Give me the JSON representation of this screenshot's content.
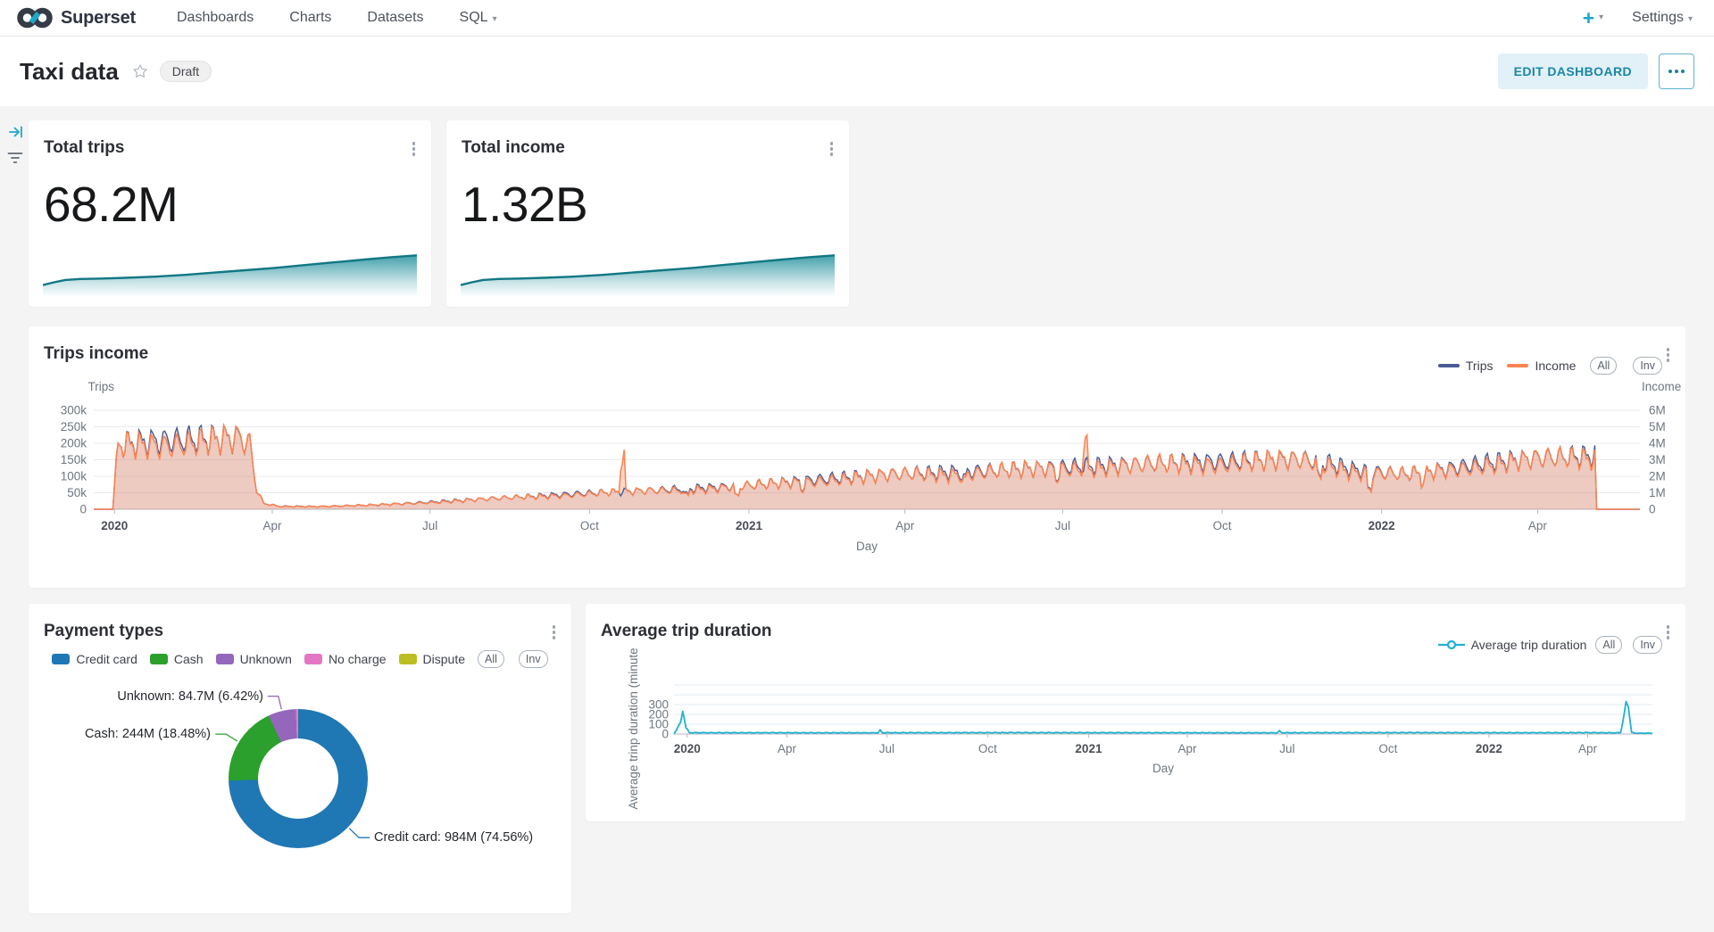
{
  "navbar": {
    "brand": "Superset",
    "items": [
      {
        "label": "Dashboards"
      },
      {
        "label": "Charts"
      },
      {
        "label": "Datasets"
      },
      {
        "label": "SQL"
      }
    ],
    "new_button": "+",
    "settings_label": "Settings"
  },
  "header": {
    "title": "Taxi data",
    "status_badge": "Draft",
    "edit_button": "EDIT DASHBOARD"
  },
  "colors": {
    "accent": "#20a7c9",
    "page_background": "#f4f4f4"
  },
  "chart_data": [
    {
      "id": "total-trips",
      "type": "big_number_trendline",
      "title": "Total trips",
      "value": "68.2M",
      "line_color": "#127784",
      "fill_top": "#2e96a3",
      "trend": [
        [
          0,
          0.2
        ],
        [
          0.03,
          0.26
        ],
        [
          0.06,
          0.31
        ],
        [
          0.1,
          0.33
        ],
        [
          0.16,
          0.34
        ],
        [
          0.22,
          0.355
        ],
        [
          0.3,
          0.38
        ],
        [
          0.38,
          0.42
        ],
        [
          0.46,
          0.47
        ],
        [
          0.54,
          0.52
        ],
        [
          0.62,
          0.57
        ],
        [
          0.7,
          0.63
        ],
        [
          0.78,
          0.69
        ],
        [
          0.86,
          0.75
        ],
        [
          0.93,
          0.8
        ],
        [
          1,
          0.84
        ]
      ]
    },
    {
      "id": "total-income",
      "type": "big_number_trendline",
      "title": "Total income",
      "value": "1.32B",
      "line_color": "#127784",
      "fill_top": "#2e96a3",
      "trend": [
        [
          0,
          0.2
        ],
        [
          0.03,
          0.26
        ],
        [
          0.06,
          0.31
        ],
        [
          0.1,
          0.33
        ],
        [
          0.16,
          0.34
        ],
        [
          0.22,
          0.355
        ],
        [
          0.3,
          0.38
        ],
        [
          0.38,
          0.42
        ],
        [
          0.46,
          0.47
        ],
        [
          0.54,
          0.52
        ],
        [
          0.62,
          0.57
        ],
        [
          0.7,
          0.63
        ],
        [
          0.78,
          0.69
        ],
        [
          0.86,
          0.75
        ],
        [
          0.93,
          0.8
        ],
        [
          1,
          0.84
        ]
      ]
    },
    {
      "id": "trips-income",
      "type": "line",
      "title": "Trips income",
      "x_axis": {
        "label": "Day",
        "ticks": [
          {
            "label": "2020",
            "day": 0,
            "bold": true
          },
          {
            "label": "Apr",
            "day": 91
          },
          {
            "label": "Jul",
            "day": 182
          },
          {
            "label": "Oct",
            "day": 274
          },
          {
            "label": "2021",
            "day": 366,
            "bold": true
          },
          {
            "label": "Apr",
            "day": 456
          },
          {
            "label": "Jul",
            "day": 547
          },
          {
            "label": "Oct",
            "day": 639
          },
          {
            "label": "2022",
            "day": 731,
            "bold": true
          },
          {
            "label": "Apr",
            "day": 821
          }
        ]
      },
      "left_axis": {
        "title": "Trips",
        "max": 300000,
        "ticks": [
          "300k",
          "250k",
          "200k",
          "150k",
          "100k",
          "50k",
          "0"
        ]
      },
      "right_axis": {
        "title": "Income",
        "max": 6000000,
        "ticks": [
          "6M",
          "5M",
          "4M",
          "3M",
          "2M",
          "1M",
          "0"
        ]
      },
      "legend": [
        {
          "label": "Trips",
          "color": "#4a5a94"
        },
        {
          "label": "Income",
          "color": "#fc8452"
        }
      ],
      "legend_buttons": [
        "All",
        "Inv"
      ],
      "day_range": [
        -12,
        880
      ],
      "series": [
        {
          "name": "Trips",
          "color": "#4a5a94",
          "keypoints": [
            [
              -12,
              0
            ],
            [
              -1,
              0
            ],
            [
              2,
              196000
            ],
            [
              10,
              200000
            ],
            [
              20,
              206000
            ],
            [
              30,
              208000
            ],
            [
              45,
              212000
            ],
            [
              60,
              214000
            ],
            [
              72,
              216000
            ],
            [
              78,
              198000
            ],
            [
              82,
              60000
            ],
            [
              86,
              18000
            ],
            [
              95,
              9000
            ],
            [
              120,
              8500
            ],
            [
              150,
              13000
            ],
            [
              180,
              21000
            ],
            [
              210,
              30000
            ],
            [
              240,
              39000
            ],
            [
              270,
              48000
            ],
            [
              300,
              55000
            ],
            [
              330,
              62000
            ],
            [
              366,
              72000
            ],
            [
              400,
              88000
            ],
            [
              430,
              100000
            ],
            [
              456,
              108000
            ],
            [
              480,
              112000
            ],
            [
              510,
              118000
            ],
            [
              540,
              126000
            ],
            [
              570,
              133000
            ],
            [
              600,
              138000
            ],
            [
              625,
              143000
            ],
            [
              650,
              147000
            ],
            [
              668,
              150000
            ],
            [
              685,
              152000
            ],
            [
              700,
              140000
            ],
            [
              715,
              120000
            ],
            [
              731,
              112000
            ],
            [
              745,
              106000
            ],
            [
              760,
              116000
            ],
            [
              775,
              128000
            ],
            [
              790,
              140000
            ],
            [
              805,
              148000
            ],
            [
              820,
              155000
            ],
            [
              835,
              158000
            ],
            [
              850,
              162000
            ],
            [
              854,
              163000
            ],
            [
              855,
              0
            ],
            [
              880,
              0
            ]
          ]
        },
        {
          "name": "Income",
          "color": "#fc8452"
        }
      ],
      "income_per_trip": 19.35,
      "income_wobble": 0.045,
      "income_spikes": [
        [
          293,
          2.8
        ],
        [
          560,
          1.55
        ]
      ],
      "dip_days": [
        [
          330,
          0.72
        ],
        [
          359,
          0.6
        ],
        [
          397,
          0.78
        ],
        [
          490,
          0.82
        ],
        [
          544,
          0.8
        ],
        [
          695,
          0.7
        ],
        [
          724,
          0.55
        ],
        [
          755,
          0.75
        ]
      ]
    },
    {
      "id": "payment-types",
      "type": "pie",
      "title": "Payment types",
      "slices": [
        {
          "label": "Credit card",
          "pct": 74.56,
          "color": "#1f77b4"
        },
        {
          "label": "Cash",
          "pct": 18.48,
          "color": "#2ca02c"
        },
        {
          "label": "Unknown",
          "pct": 6.42,
          "color": "#9467bd"
        },
        {
          "label": "No charge",
          "pct": 0.4,
          "color": "#e377c2"
        },
        {
          "label": "Dispute",
          "pct": 0.14,
          "color": "#bcbd22"
        }
      ],
      "callouts": [
        {
          "slice": 2,
          "text": "Unknown: 84.7M (6.42%)"
        },
        {
          "slice": 1,
          "text": "Cash: 244M (18.48%)"
        },
        {
          "slice": 0,
          "text": "Credit card: 984M (74.56%)"
        }
      ],
      "legend_buttons": [
        "All",
        "Inv"
      ]
    },
    {
      "id": "avg-trip-duration",
      "type": "line",
      "title": "Average trip duration",
      "color": "#21b1d0",
      "legend": [
        {
          "label": "Average trip duration",
          "color": "#21b1d0"
        }
      ],
      "legend_buttons": [
        "All",
        "Inv"
      ],
      "y_axis": {
        "label": "Average trinp duration (minute",
        "ticks": [
          "300",
          "200",
          "100",
          "0"
        ]
      },
      "x_axis": {
        "label": "Day",
        "ticks": [
          {
            "label": "2020",
            "day": 0,
            "bold": true
          },
          {
            "label": "Apr",
            "day": 91
          },
          {
            "label": "Jul",
            "day": 182
          },
          {
            "label": "Oct",
            "day": 274
          },
          {
            "label": "2021",
            "day": 366,
            "bold": true
          },
          {
            "label": "Apr",
            "day": 456
          },
          {
            "label": "Jul",
            "day": 547
          },
          {
            "label": "Oct",
            "day": 639
          },
          {
            "label": "2022",
            "day": 731,
            "bold": true
          },
          {
            "label": "Apr",
            "day": 821
          }
        ]
      },
      "day_range": [
        -12,
        880
      ],
      "osc_amp": 0.18,
      "keypoints": [
        [
          -12,
          0
        ],
        [
          -6,
          120
        ],
        [
          -4,
          230
        ],
        [
          -1,
          60
        ],
        [
          2,
          13
        ],
        [
          80,
          13
        ],
        [
          174,
          12
        ],
        [
          176,
          36
        ],
        [
          178,
          13
        ],
        [
          300,
          14
        ],
        [
          450,
          13
        ],
        [
          538,
          12
        ],
        [
          540,
          30
        ],
        [
          542,
          13
        ],
        [
          660,
          14
        ],
        [
          770,
          13
        ],
        [
          820,
          14
        ],
        [
          848,
          12
        ],
        [
          851,
          15
        ],
        [
          853,
          120
        ],
        [
          856,
          330
        ],
        [
          858,
          280
        ],
        [
          861,
          15
        ],
        [
          866,
          8
        ],
        [
          880,
          8
        ]
      ]
    }
  ]
}
